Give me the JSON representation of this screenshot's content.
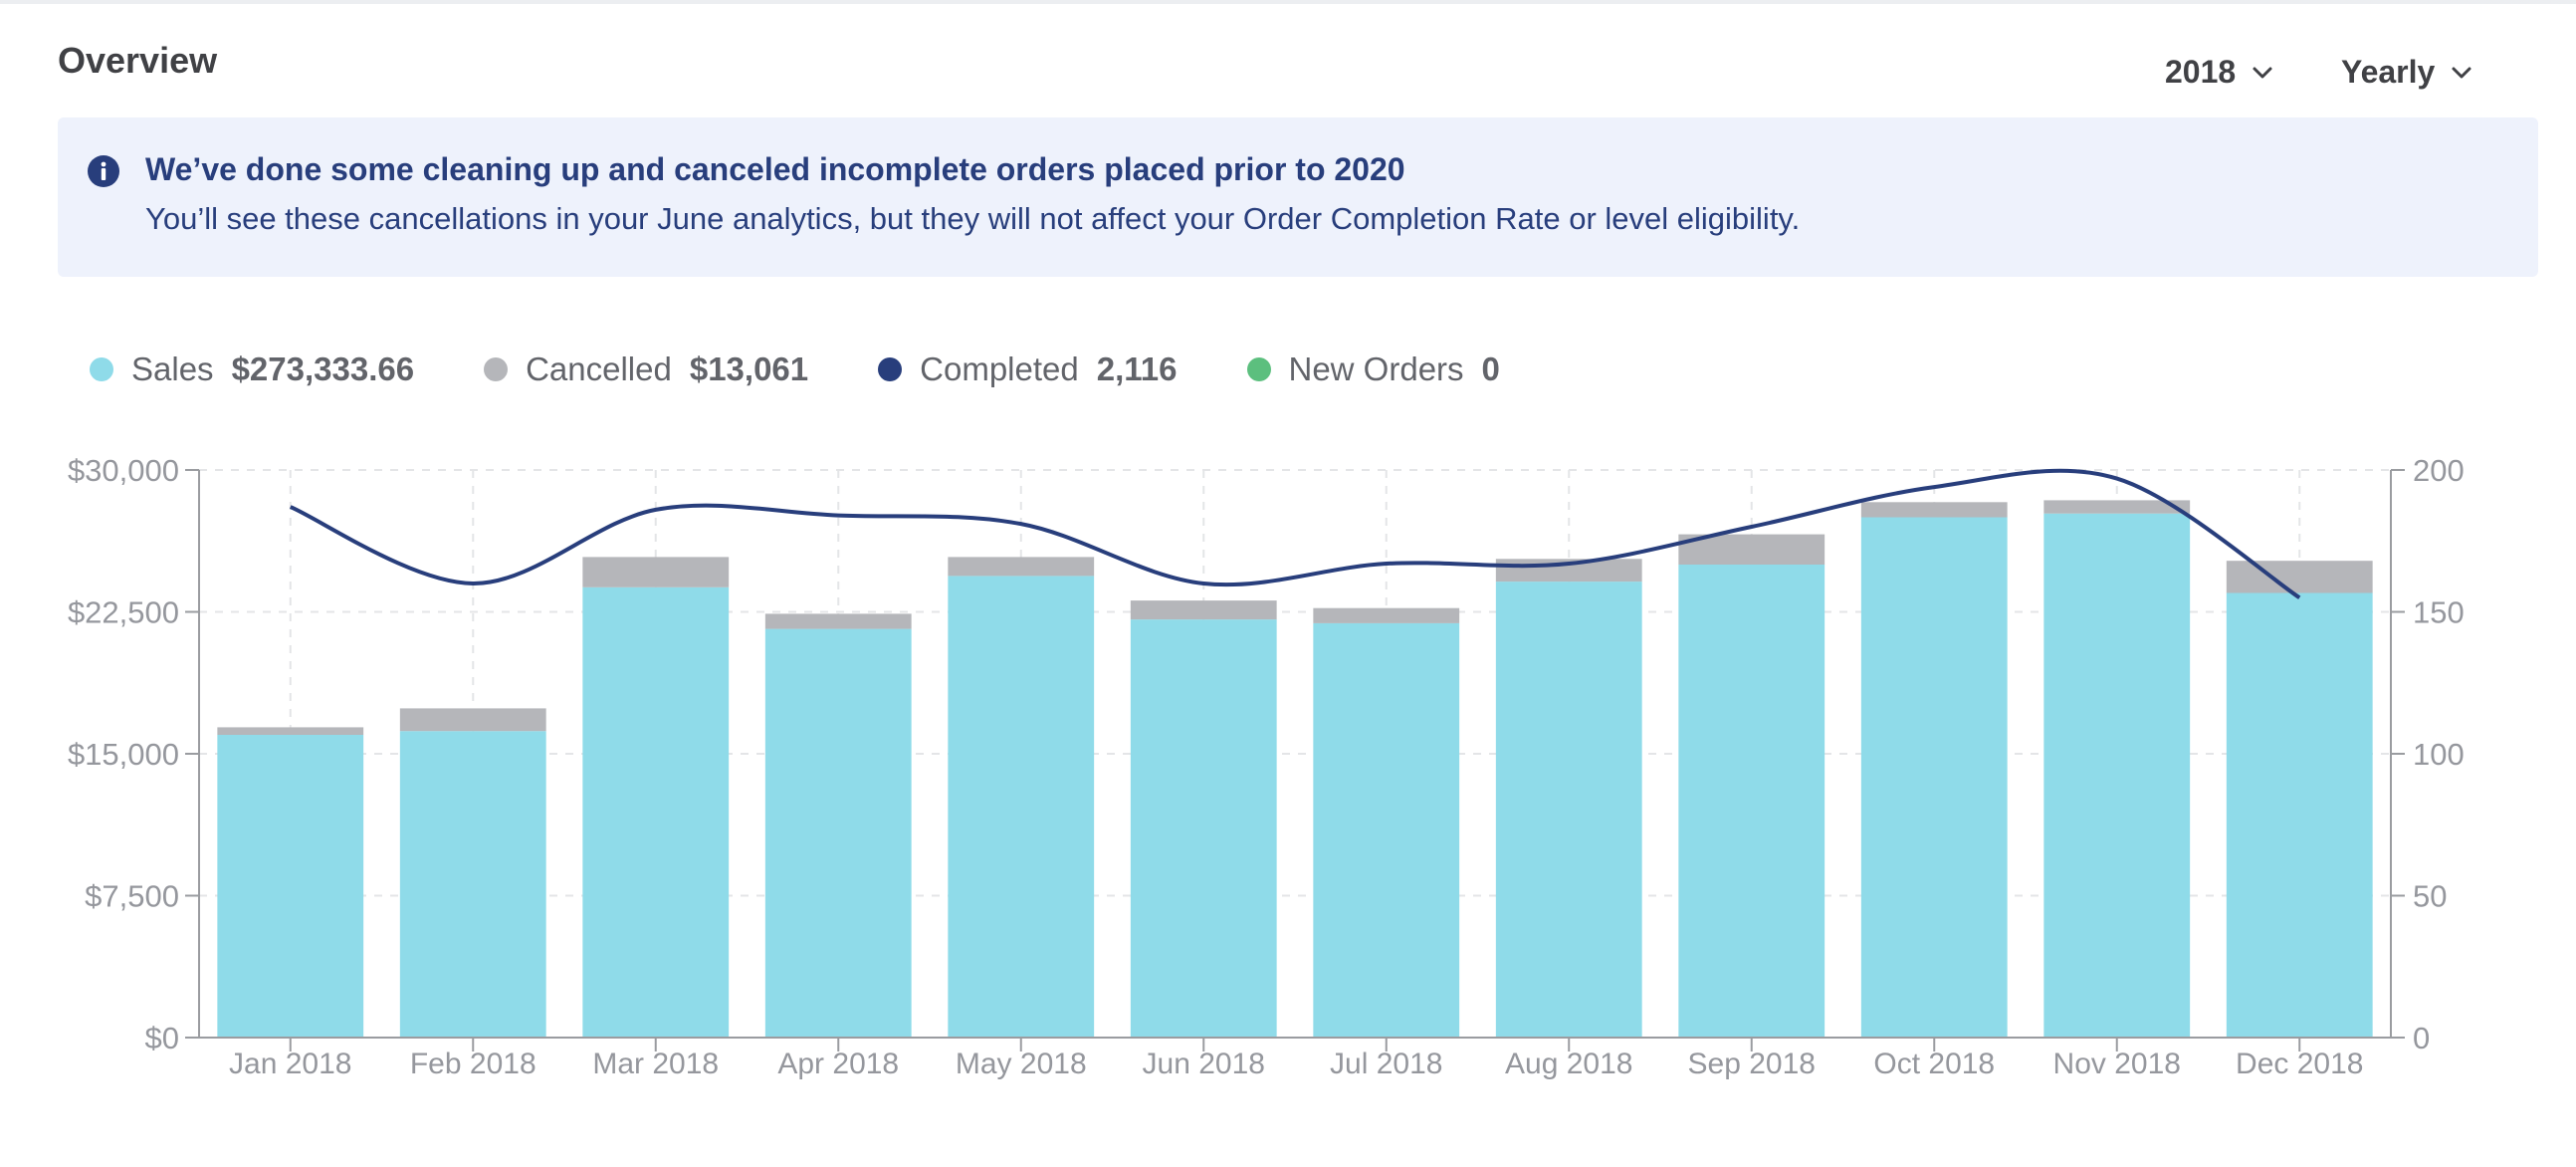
{
  "header": {
    "title": "Overview",
    "year_filter": "2018",
    "period_filter": "Yearly"
  },
  "notice": {
    "icon": "info-icon",
    "title": "We’ve done some cleaning up and canceled incomplete orders placed prior to 2020",
    "body": "You’ll see these cancellations in your June analytics, but they will not affect your Order Completion Rate or level eligibility."
  },
  "legend": [
    {
      "label": "Sales",
      "value": "$273,333.66",
      "color": "#8fdbe9"
    },
    {
      "label": "Cancelled",
      "value": "$13,061",
      "color": "#b5b6ba"
    },
    {
      "label": "Completed",
      "value": "2,116",
      "color": "#283e7c"
    },
    {
      "label": "New Orders",
      "value": "0",
      "color": "#5cbf7e"
    }
  ],
  "chart_data": {
    "type": "bar",
    "categories": [
      "Jan 2018",
      "Feb 2018",
      "Mar 2018",
      "Apr 2018",
      "May 2018",
      "Jun 2018",
      "Jul 2018",
      "Aug 2018",
      "Sep 2018",
      "Oct 2018",
      "Nov 2018",
      "Dec 2018"
    ],
    "series": [
      {
        "name": "Sales",
        "kind": "bar",
        "axis": "left",
        "color": "#8fdbe9",
        "values": [
          16000,
          16200,
          23800,
          21600,
          24400,
          22100,
          21900,
          24100,
          25000,
          27500,
          27700,
          23500
        ]
      },
      {
        "name": "Cancelled",
        "kind": "bar-stacked",
        "axis": "left",
        "color": "#b5b6ba",
        "values": [
          400,
          1200,
          1600,
          800,
          1000,
          1000,
          800,
          1200,
          1600,
          800,
          700,
          1700
        ]
      },
      {
        "name": "Completed",
        "kind": "line",
        "axis": "right",
        "color": "#283e7c",
        "values": [
          187,
          160,
          186,
          184,
          181,
          160,
          167,
          167,
          180,
          194,
          197,
          155
        ]
      }
    ],
    "y_left": {
      "min": 0,
      "max": 30000,
      "ticks": [
        0,
        7500,
        15000,
        22500,
        30000
      ],
      "tick_labels": [
        "$0",
        "$7,500",
        "$15,000",
        "$22,500",
        "$30,000"
      ]
    },
    "y_right": {
      "min": 0,
      "max": 200,
      "ticks": [
        0,
        50,
        100,
        150,
        200
      ],
      "tick_labels": [
        "0",
        "50",
        "100",
        "150",
        "200"
      ]
    },
    "grid": true,
    "xlabel": "",
    "ylabel": ""
  }
}
